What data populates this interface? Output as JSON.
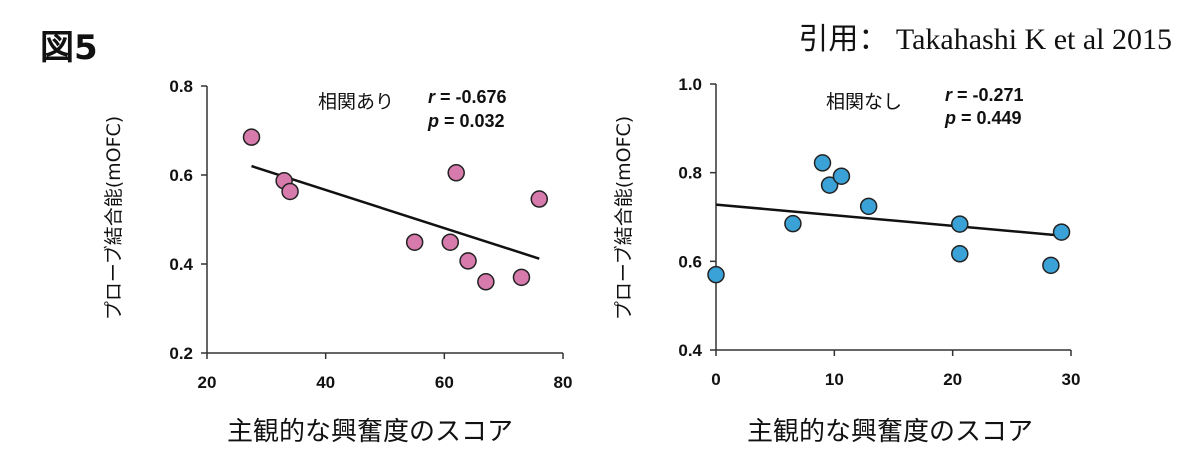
{
  "figure_label": "図5",
  "citation": "引用： Takahashi K et al 2015",
  "chart_data": [
    {
      "type": "scatter",
      "xlabel": "主観的な興奮度のスコア",
      "ylabel": "プローブ結合能(mOFC)",
      "xlim": [
        20,
        80
      ],
      "ylim": [
        0.2,
        0.8
      ],
      "x_ticks": [
        "20",
        "40",
        "60",
        "80"
      ],
      "y_ticks": [
        "0.2",
        "0.4",
        "0.6",
        "0.8"
      ],
      "x_tick_values": [
        20,
        40,
        60,
        80
      ],
      "y_tick_values": [
        0.2,
        0.4,
        0.6,
        0.8
      ],
      "annotation": "相関あり",
      "r_text": "r = -0.676",
      "p_text": "p = 0.032",
      "point_color": "#d77aac",
      "points": [
        {
          "x": 27.5,
          "y": 0.685
        },
        {
          "x": 33,
          "y": 0.587
        },
        {
          "x": 34,
          "y": 0.563
        },
        {
          "x": 55,
          "y": 0.449
        },
        {
          "x": 61,
          "y": 0.449
        },
        {
          "x": 62,
          "y": 0.605
        },
        {
          "x": 64,
          "y": 0.407
        },
        {
          "x": 67,
          "y": 0.36
        },
        {
          "x": 73,
          "y": 0.37
        },
        {
          "x": 76,
          "y": 0.546
        }
      ],
      "trendline": [
        {
          "x": 27.5,
          "y": 0.62
        },
        {
          "x": 76,
          "y": 0.412
        }
      ]
    },
    {
      "type": "scatter",
      "xlabel": "主観的な興奮度のスコア",
      "ylabel": "プローブ結合能(mOFC)",
      "xlim": [
        0,
        30
      ],
      "ylim": [
        0.4,
        1.0
      ],
      "x_ticks": [
        "0",
        "10",
        "20",
        "30"
      ],
      "y_ticks": [
        "0.4",
        "0.6",
        "0.8",
        "1.0"
      ],
      "x_tick_values": [
        0,
        10,
        20,
        30
      ],
      "y_tick_values": [
        0.4,
        0.6,
        0.8,
        1.0
      ],
      "annotation": "相関なし",
      "r_text": "r = -0.271",
      "p_text": "p = 0.449",
      "point_color": "#3aa2d6",
      "points": [
        {
          "x": 0,
          "y": 0.57
        },
        {
          "x": 6.5,
          "y": 0.685
        },
        {
          "x": 9,
          "y": 0.822
        },
        {
          "x": 9.6,
          "y": 0.772
        },
        {
          "x": 10.6,
          "y": 0.792
        },
        {
          "x": 12.9,
          "y": 0.724
        },
        {
          "x": 20.6,
          "y": 0.684
        },
        {
          "x": 20.6,
          "y": 0.617
        },
        {
          "x": 28.3,
          "y": 0.591
        },
        {
          "x": 29.2,
          "y": 0.666
        }
      ],
      "trendline": [
        {
          "x": 0,
          "y": 0.728
        },
        {
          "x": 29.2,
          "y": 0.658
        }
      ]
    }
  ]
}
